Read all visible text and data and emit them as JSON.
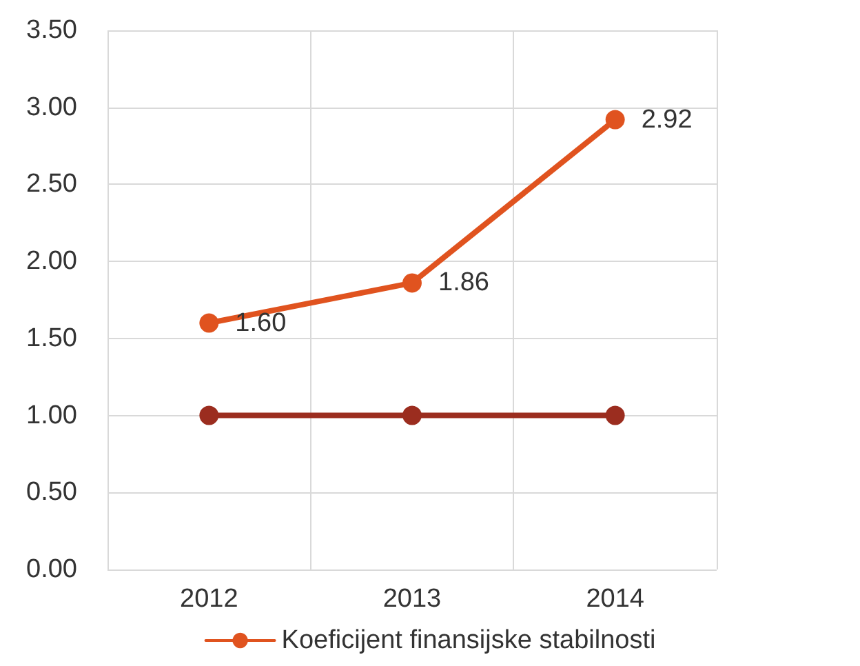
{
  "chart_data": {
    "type": "line",
    "categories": [
      "2012",
      "2013",
      "2014"
    ],
    "series": [
      {
        "name": "Koeficijent finansijske stabilnosti",
        "color": "#e0531f",
        "values": [
          1.6,
          1.86,
          2.92
        ],
        "value_labels": [
          "1.60",
          "1.86",
          "2.92"
        ]
      },
      {
        "color": "#9b2d1f",
        "values": [
          1,
          1,
          1
        ]
      }
    ],
    "ylim": [
      0,
      3.5
    ],
    "yticks": [
      {
        "value": 0,
        "label": "0.00"
      },
      {
        "value": 0.5,
        "label": "0.50"
      },
      {
        "value": 1,
        "label": "1.00"
      },
      {
        "value": 1.5,
        "label": "1.50"
      },
      {
        "value": 2,
        "label": "2.00"
      },
      {
        "value": 2.5,
        "label": "2.50"
      },
      {
        "value": 3,
        "label": "3.00"
      },
      {
        "value": 3.5,
        "label": "3.50"
      }
    ],
    "grid": true,
    "legend": "bottom",
    "marker": "circle",
    "line_style": "solid"
  }
}
